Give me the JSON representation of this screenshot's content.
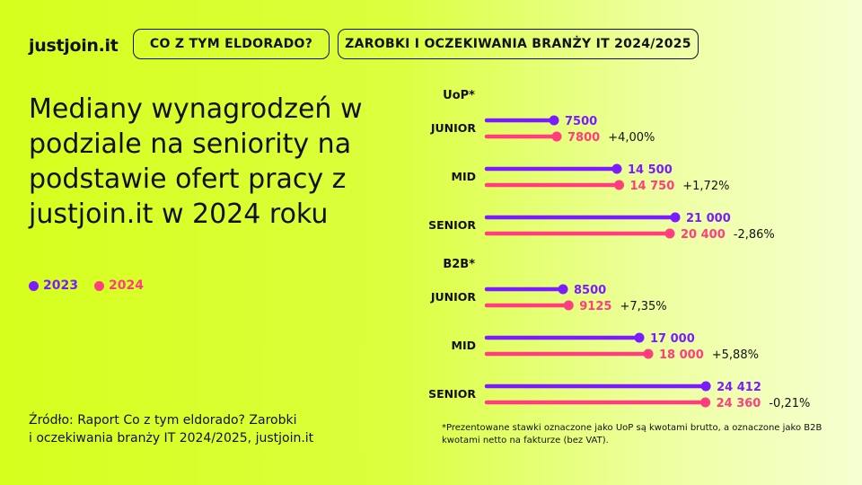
{
  "brand": {
    "logo": "justjoin.it"
  },
  "header": {
    "pill_1": "CO Z TYM ELDORADO?",
    "pill_2": "ZAROBKI I OCZEKIWANIA BRANŻY IT 2024/2025"
  },
  "headline": "Mediany wynagrodzeń w podziale na seniority na podstawie ofert pracy z justjoin.it w 2024 roku",
  "legend": [
    {
      "label": "2023",
      "color": "#7a1cff"
    },
    {
      "label": "2024",
      "color": "#ff3d7f"
    }
  ],
  "source": "Źródło: Raport Co z tym eldorado? Zarobki\ni oczekiwania branży IT 2024/2025, justjoin.it",
  "footnote": "*Prezentowane stawki oznaczone jako UoP są kwotami brutto, a oznaczone jako B2B kwotami netto na fakturze (bez VAT).",
  "chart_data": {
    "type": "bar",
    "orientation": "horizontal",
    "title": "",
    "xlabel": "",
    "ylabel": "",
    "grid": false,
    "xlim": [
      0,
      25000
    ],
    "legend_placement": "left",
    "colors": {
      "2023": "#7a1cff",
      "2024": "#ff3d7f"
    },
    "groups": [
      {
        "name": "UoP*",
        "rows": [
          {
            "category": "JUNIOR",
            "v2023": 7500,
            "v2024": 7800,
            "label2023": "7500",
            "label2024": "7800",
            "change": "+4,00%"
          },
          {
            "category": "MID",
            "v2023": 14500,
            "v2024": 14750,
            "label2023": "14 500",
            "label2024": "14 750",
            "change": "+1,72%"
          },
          {
            "category": "SENIOR",
            "v2023": 21000,
            "v2024": 20400,
            "label2023": "21 000",
            "label2024": "20 400",
            "change": "-2,86%"
          }
        ]
      },
      {
        "name": "B2B*",
        "rows": [
          {
            "category": "JUNIOR",
            "v2023": 8500,
            "v2024": 9125,
            "label2023": "8500",
            "label2024": "9125",
            "change": "+7,35%"
          },
          {
            "category": "MID",
            "v2023": 17000,
            "v2024": 18000,
            "label2023": "17 000",
            "label2024": "18 000",
            "change": "+5,88%"
          },
          {
            "category": "SENIOR",
            "v2023": 24412,
            "v2024": 24360,
            "label2023": "24 412",
            "label2024": "24 360",
            "change": "-0,21%"
          }
        ]
      }
    ]
  }
}
